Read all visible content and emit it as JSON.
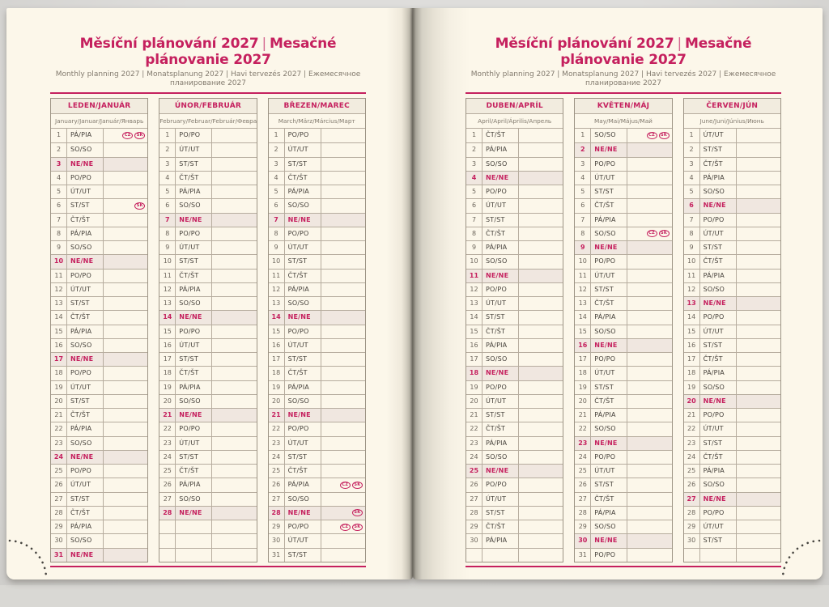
{
  "style": {
    "accent": "#c5205e",
    "page_cream": "#fcf7ea",
    "highlight": "#f0e7e0",
    "header_fill": "#f2ecdf",
    "border": "#b6ac9e",
    "border_dark": "#9c9384",
    "text_dark": "#45403a",
    "text_gray": "#827a6e"
  },
  "header": {
    "title_cs": "Měsíční plánování 2027",
    "title_divider": "|",
    "title_sk": "Mesačné plánovanie 2027",
    "subtitle": "Monthly planning 2027 | Monatsplanung 2027 | Havi tervezés 2027 | Ежемесячное планирование 2027"
  },
  "pages": [
    {
      "months": [
        {
          "name": "LEDEN/JANUÁR",
          "subtitle": "January/Januar/Január/Январь",
          "blank": 0,
          "days": [
            {
              "n": 1,
              "d": "PÁ/PIA",
              "b": [
                "CZ",
                "SK"
              ]
            },
            {
              "n": 2,
              "d": "SO/SO"
            },
            {
              "n": 3,
              "d": "NE/NE",
              "s": true
            },
            {
              "n": 4,
              "d": "PO/PO"
            },
            {
              "n": 5,
              "d": "ÚT/UT"
            },
            {
              "n": 6,
              "d": "ST/ST",
              "b": [
                "SK"
              ]
            },
            {
              "n": 7,
              "d": "ČT/ŠT"
            },
            {
              "n": 8,
              "d": "PÁ/PIA"
            },
            {
              "n": 9,
              "d": "SO/SO"
            },
            {
              "n": 10,
              "d": "NE/NE",
              "s": true
            },
            {
              "n": 11,
              "d": "PO/PO"
            },
            {
              "n": 12,
              "d": "ÚT/UT"
            },
            {
              "n": 13,
              "d": "ST/ST"
            },
            {
              "n": 14,
              "d": "ČT/ŠT"
            },
            {
              "n": 15,
              "d": "PÁ/PIA"
            },
            {
              "n": 16,
              "d": "SO/SO"
            },
            {
              "n": 17,
              "d": "NE/NE",
              "s": true
            },
            {
              "n": 18,
              "d": "PO/PO"
            },
            {
              "n": 19,
              "d": "ÚT/UT"
            },
            {
              "n": 20,
              "d": "ST/ST"
            },
            {
              "n": 21,
              "d": "ČT/ŠT"
            },
            {
              "n": 22,
              "d": "PÁ/PIA"
            },
            {
              "n": 23,
              "d": "SO/SO"
            },
            {
              "n": 24,
              "d": "NE/NE",
              "s": true
            },
            {
              "n": 25,
              "d": "PO/PO"
            },
            {
              "n": 26,
              "d": "ÚT/UT"
            },
            {
              "n": 27,
              "d": "ST/ST"
            },
            {
              "n": 28,
              "d": "ČT/ŠT"
            },
            {
              "n": 29,
              "d": "PÁ/PIA"
            },
            {
              "n": 30,
              "d": "SO/SO"
            },
            {
              "n": 31,
              "d": "NE/NE",
              "s": true
            }
          ]
        },
        {
          "name": "ÚNOR/FEBRUÁR",
          "subtitle": "February/Februar/Február/Февраль",
          "blank": 3,
          "days": [
            {
              "n": 1,
              "d": "PO/PO"
            },
            {
              "n": 2,
              "d": "ÚT/UT"
            },
            {
              "n": 3,
              "d": "ST/ST"
            },
            {
              "n": 4,
              "d": "ČT/ŠT"
            },
            {
              "n": 5,
              "d": "PÁ/PIA"
            },
            {
              "n": 6,
              "d": "SO/SO"
            },
            {
              "n": 7,
              "d": "NE/NE",
              "s": true
            },
            {
              "n": 8,
              "d": "PO/PO"
            },
            {
              "n": 9,
              "d": "ÚT/UT"
            },
            {
              "n": 10,
              "d": "ST/ST"
            },
            {
              "n": 11,
              "d": "ČT/ŠT"
            },
            {
              "n": 12,
              "d": "PÁ/PIA"
            },
            {
              "n": 13,
              "d": "SO/SO"
            },
            {
              "n": 14,
              "d": "NE/NE",
              "s": true
            },
            {
              "n": 15,
              "d": "PO/PO"
            },
            {
              "n": 16,
              "d": "ÚT/UT"
            },
            {
              "n": 17,
              "d": "ST/ST"
            },
            {
              "n": 18,
              "d": "ČT/ŠT"
            },
            {
              "n": 19,
              "d": "PÁ/PIA"
            },
            {
              "n": 20,
              "d": "SO/SO"
            },
            {
              "n": 21,
              "d": "NE/NE",
              "s": true
            },
            {
              "n": 22,
              "d": "PO/PO"
            },
            {
              "n": 23,
              "d": "ÚT/UT"
            },
            {
              "n": 24,
              "d": "ST/ST"
            },
            {
              "n": 25,
              "d": "ČT/ŠT"
            },
            {
              "n": 26,
              "d": "PÁ/PIA"
            },
            {
              "n": 27,
              "d": "SO/SO"
            },
            {
              "n": 28,
              "d": "NE/NE",
              "s": true
            }
          ]
        },
        {
          "name": "BŘEZEN/MAREC",
          "subtitle": "March/März/Március/Март",
          "blank": 0,
          "days": [
            {
              "n": 1,
              "d": "PO/PO"
            },
            {
              "n": 2,
              "d": "ÚT/UT"
            },
            {
              "n": 3,
              "d": "ST/ST"
            },
            {
              "n": 4,
              "d": "ČT/ŠT"
            },
            {
              "n": 5,
              "d": "PÁ/PIA"
            },
            {
              "n": 6,
              "d": "SO/SO"
            },
            {
              "n": 7,
              "d": "NE/NE",
              "s": true
            },
            {
              "n": 8,
              "d": "PO/PO"
            },
            {
              "n": 9,
              "d": "ÚT/UT"
            },
            {
              "n": 10,
              "d": "ST/ST"
            },
            {
              "n": 11,
              "d": "ČT/ŠT"
            },
            {
              "n": 12,
              "d": "PÁ/PIA"
            },
            {
              "n": 13,
              "d": "SO/SO"
            },
            {
              "n": 14,
              "d": "NE/NE",
              "s": true
            },
            {
              "n": 15,
              "d": "PO/PO"
            },
            {
              "n": 16,
              "d": "ÚT/UT"
            },
            {
              "n": 17,
              "d": "ST/ST"
            },
            {
              "n": 18,
              "d": "ČT/ŠT"
            },
            {
              "n": 19,
              "d": "PÁ/PIA"
            },
            {
              "n": 20,
              "d": "SO/SO"
            },
            {
              "n": 21,
              "d": "NE/NE",
              "s": true
            },
            {
              "n": 22,
              "d": "PO/PO"
            },
            {
              "n": 23,
              "d": "ÚT/UT"
            },
            {
              "n": 24,
              "d": "ST/ST"
            },
            {
              "n": 25,
              "d": "ČT/ŠT"
            },
            {
              "n": 26,
              "d": "PÁ/PIA",
              "b": [
                "CZ",
                "SK"
              ]
            },
            {
              "n": 27,
              "d": "SO/SO"
            },
            {
              "n": 28,
              "d": "NE/NE",
              "s": true,
              "b": [
                "SK"
              ]
            },
            {
              "n": 29,
              "d": "PO/PO",
              "b": [
                "CZ",
                "SK"
              ]
            },
            {
              "n": 30,
              "d": "ÚT/UT"
            },
            {
              "n": 31,
              "d": "ST/ST"
            }
          ]
        }
      ]
    },
    {
      "months": [
        {
          "name": "DUBEN/APRÍL",
          "subtitle": "April/April/Április/Апрель",
          "blank": 1,
          "days": [
            {
              "n": 1,
              "d": "ČT/ŠT"
            },
            {
              "n": 2,
              "d": "PÁ/PIA"
            },
            {
              "n": 3,
              "d": "SO/SO"
            },
            {
              "n": 4,
              "d": "NE/NE",
              "s": true
            },
            {
              "n": 5,
              "d": "PO/PO"
            },
            {
              "n": 6,
              "d": "ÚT/UT"
            },
            {
              "n": 7,
              "d": "ST/ST"
            },
            {
              "n": 8,
              "d": "ČT/ŠT"
            },
            {
              "n": 9,
              "d": "PÁ/PIA"
            },
            {
              "n": 10,
              "d": "SO/SO"
            },
            {
              "n": 11,
              "d": "NE/NE",
              "s": true
            },
            {
              "n": 12,
              "d": "PO/PO"
            },
            {
              "n": 13,
              "d": "ÚT/UT"
            },
            {
              "n": 14,
              "d": "ST/ST"
            },
            {
              "n": 15,
              "d": "ČT/ŠT"
            },
            {
              "n": 16,
              "d": "PÁ/PIA"
            },
            {
              "n": 17,
              "d": "SO/SO"
            },
            {
              "n": 18,
              "d": "NE/NE",
              "s": true
            },
            {
              "n": 19,
              "d": "PO/PO"
            },
            {
              "n": 20,
              "d": "ÚT/UT"
            },
            {
              "n": 21,
              "d": "ST/ST"
            },
            {
              "n": 22,
              "d": "ČT/ŠT"
            },
            {
              "n": 23,
              "d": "PÁ/PIA"
            },
            {
              "n": 24,
              "d": "SO/SO"
            },
            {
              "n": 25,
              "d": "NE/NE",
              "s": true
            },
            {
              "n": 26,
              "d": "PO/PO"
            },
            {
              "n": 27,
              "d": "ÚT/UT"
            },
            {
              "n": 28,
              "d": "ST/ST"
            },
            {
              "n": 29,
              "d": "ČT/ŠT"
            },
            {
              "n": 30,
              "d": "PÁ/PIA"
            }
          ]
        },
        {
          "name": "KVĚTEN/MÁJ",
          "subtitle": "May/Mai/Május/Май",
          "blank": 0,
          "days": [
            {
              "n": 1,
              "d": "SO/SO",
              "b": [
                "CZ",
                "SK"
              ]
            },
            {
              "n": 2,
              "d": "NE/NE",
              "s": true
            },
            {
              "n": 3,
              "d": "PO/PO"
            },
            {
              "n": 4,
              "d": "ÚT/UT"
            },
            {
              "n": 5,
              "d": "ST/ST"
            },
            {
              "n": 6,
              "d": "ČT/ŠT"
            },
            {
              "n": 7,
              "d": "PÁ/PIA"
            },
            {
              "n": 8,
              "d": "SO/SO",
              "b": [
                "CZ",
                "SK"
              ]
            },
            {
              "n": 9,
              "d": "NE/NE",
              "s": true
            },
            {
              "n": 10,
              "d": "PO/PO"
            },
            {
              "n": 11,
              "d": "ÚT/UT"
            },
            {
              "n": 12,
              "d": "ST/ST"
            },
            {
              "n": 13,
              "d": "ČT/ŠT"
            },
            {
              "n": 14,
              "d": "PÁ/PIA"
            },
            {
              "n": 15,
              "d": "SO/SO"
            },
            {
              "n": 16,
              "d": "NE/NE",
              "s": true
            },
            {
              "n": 17,
              "d": "PO/PO"
            },
            {
              "n": 18,
              "d": "ÚT/UT"
            },
            {
              "n": 19,
              "d": "ST/ST"
            },
            {
              "n": 20,
              "d": "ČT/ŠT"
            },
            {
              "n": 21,
              "d": "PÁ/PIA"
            },
            {
              "n": 22,
              "d": "SO/SO"
            },
            {
              "n": 23,
              "d": "NE/NE",
              "s": true
            },
            {
              "n": 24,
              "d": "PO/PO"
            },
            {
              "n": 25,
              "d": "ÚT/UT"
            },
            {
              "n": 26,
              "d": "ST/ST"
            },
            {
              "n": 27,
              "d": "ČT/ŠT"
            },
            {
              "n": 28,
              "d": "PÁ/PIA"
            },
            {
              "n": 29,
              "d": "SO/SO"
            },
            {
              "n": 30,
              "d": "NE/NE",
              "s": true
            },
            {
              "n": 31,
              "d": "PO/PO"
            }
          ]
        },
        {
          "name": "ČERVEN/JÚN",
          "subtitle": "June/Juni/Június/Июнь",
          "blank": 1,
          "days": [
            {
              "n": 1,
              "d": "ÚT/UT"
            },
            {
              "n": 2,
              "d": "ST/ST"
            },
            {
              "n": 3,
              "d": "ČT/ŠT"
            },
            {
              "n": 4,
              "d": "PÁ/PIA"
            },
            {
              "n": 5,
              "d": "SO/SO"
            },
            {
              "n": 6,
              "d": "NE/NE",
              "s": true
            },
            {
              "n": 7,
              "d": "PO/PO"
            },
            {
              "n": 8,
              "d": "ÚT/UT"
            },
            {
              "n": 9,
              "d": "ST/ST"
            },
            {
              "n": 10,
              "d": "ČT/ŠT"
            },
            {
              "n": 11,
              "d": "PÁ/PIA"
            },
            {
              "n": 12,
              "d": "SO/SO"
            },
            {
              "n": 13,
              "d": "NE/NE",
              "s": true
            },
            {
              "n": 14,
              "d": "PO/PO"
            },
            {
              "n": 15,
              "d": "ÚT/UT"
            },
            {
              "n": 16,
              "d": "ST/ST"
            },
            {
              "n": 17,
              "d": "ČT/ŠT"
            },
            {
              "n": 18,
              "d": "PÁ/PIA"
            },
            {
              "n": 19,
              "d": "SO/SO"
            },
            {
              "n": 20,
              "d": "NE/NE",
              "s": true
            },
            {
              "n": 21,
              "d": "PO/PO"
            },
            {
              "n": 22,
              "d": "ÚT/UT"
            },
            {
              "n": 23,
              "d": "ST/ST"
            },
            {
              "n": 24,
              "d": "ČT/ŠT"
            },
            {
              "n": 25,
              "d": "PÁ/PIA"
            },
            {
              "n": 26,
              "d": "SO/SO"
            },
            {
              "n": 27,
              "d": "NE/NE",
              "s": true
            },
            {
              "n": 28,
              "d": "PO/PO"
            },
            {
              "n": 29,
              "d": "ÚT/UT"
            },
            {
              "n": 30,
              "d": "ST/ST"
            }
          ]
        }
      ]
    }
  ]
}
